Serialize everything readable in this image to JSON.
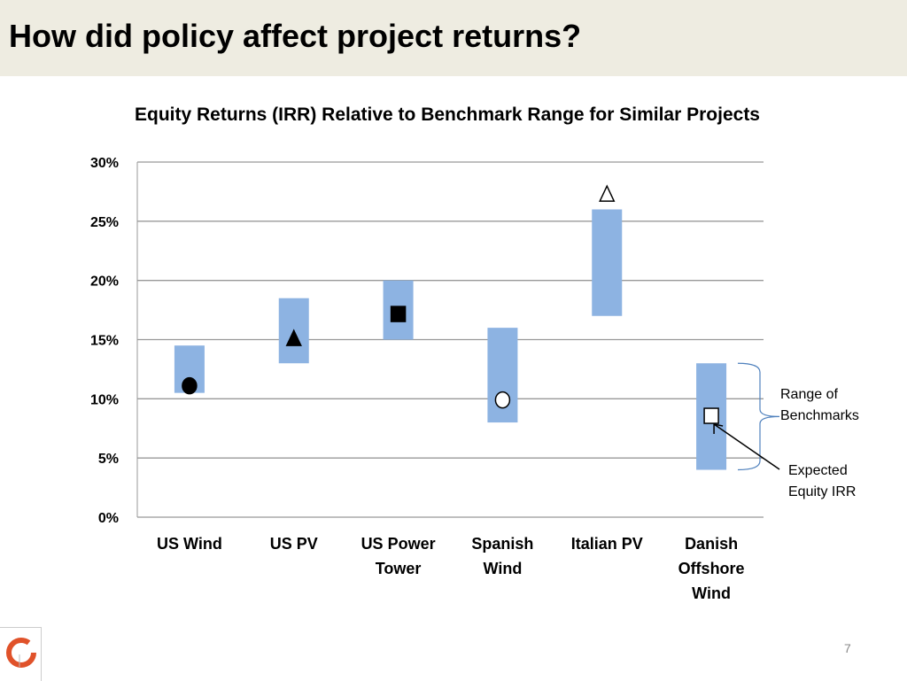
{
  "slide": {
    "title": "How did policy affect project returns?",
    "page_number": "7"
  },
  "chart_data": {
    "type": "floating-bar-with-markers",
    "title": "Equity Returns (IRR) Relative to Benchmark Range for Similar Projects",
    "ylim": [
      0,
      30
    ],
    "yticks": [
      "0%",
      "5%",
      "10%",
      "15%",
      "20%",
      "25%",
      "30%"
    ],
    "ytick_values": [
      0,
      5,
      10,
      15,
      20,
      25,
      30
    ],
    "grid": true,
    "bar_color": "#8db3e2",
    "categories": [
      {
        "label": [
          "US Wind"
        ],
        "range": [
          10.5,
          14.5
        ],
        "irr": 11.1,
        "marker": "circle-filled"
      },
      {
        "label": [
          "US PV"
        ],
        "range": [
          13,
          18.5
        ],
        "irr": 15.1,
        "marker": "triangle-filled"
      },
      {
        "label": [
          "US Power",
          "Tower"
        ],
        "range": [
          15,
          20
        ],
        "irr": 17.2,
        "marker": "square-filled"
      },
      {
        "label": [
          "Spanish",
          "Wind"
        ],
        "range": [
          8,
          16
        ],
        "irr": 9.9,
        "marker": "circle-open"
      },
      {
        "label": [
          "Italian PV"
        ],
        "range": [
          17,
          26
        ],
        "irr": 27.3,
        "marker": "triangle-open"
      },
      {
        "label": [
          "Danish",
          "Offshore",
          "Wind"
        ],
        "range": [
          4,
          13
        ],
        "irr": 8.6,
        "marker": "square-open"
      }
    ],
    "annotations": {
      "range": [
        "Range of",
        "Benchmarks"
      ],
      "expected": [
        "Expected",
        "Equity IRR"
      ]
    }
  }
}
